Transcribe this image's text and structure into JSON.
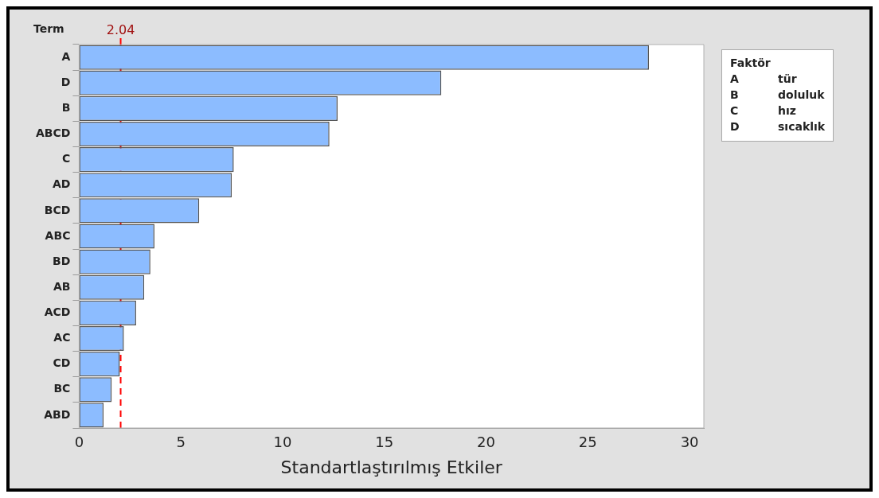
{
  "chart_data": {
    "type": "bar",
    "orientation": "horizontal",
    "ylabel": "Term",
    "xlabel": "Standartlaştırılmış Etkiler",
    "categories": [
      "A",
      "D",
      "B",
      "ABCD",
      "C",
      "AD",
      "BCD",
      "ABC",
      "BD",
      "AB",
      "ACD",
      "AC",
      "CD",
      "BC",
      "ABD"
    ],
    "values": [
      28.0,
      17.8,
      12.7,
      12.3,
      7.6,
      7.5,
      5.9,
      3.7,
      3.5,
      3.2,
      2.8,
      2.2,
      2.0,
      1.6,
      1.2
    ],
    "color": "#8cbcff",
    "xlim": [
      0,
      30.7
    ],
    "xticks": [
      0,
      5,
      10,
      15,
      20,
      25,
      30
    ],
    "grid": false,
    "legend": false,
    "ref_lines": [
      {
        "axis": "x",
        "value": 2.04,
        "label": "2.04",
        "color": "#ff0000",
        "line_style": "dashed"
      }
    ],
    "legend_title": "Faktör",
    "annotations": [
      "A",
      "tür",
      "B",
      "doluluk",
      "C",
      "hız",
      "D",
      "sıcaklık"
    ]
  }
}
